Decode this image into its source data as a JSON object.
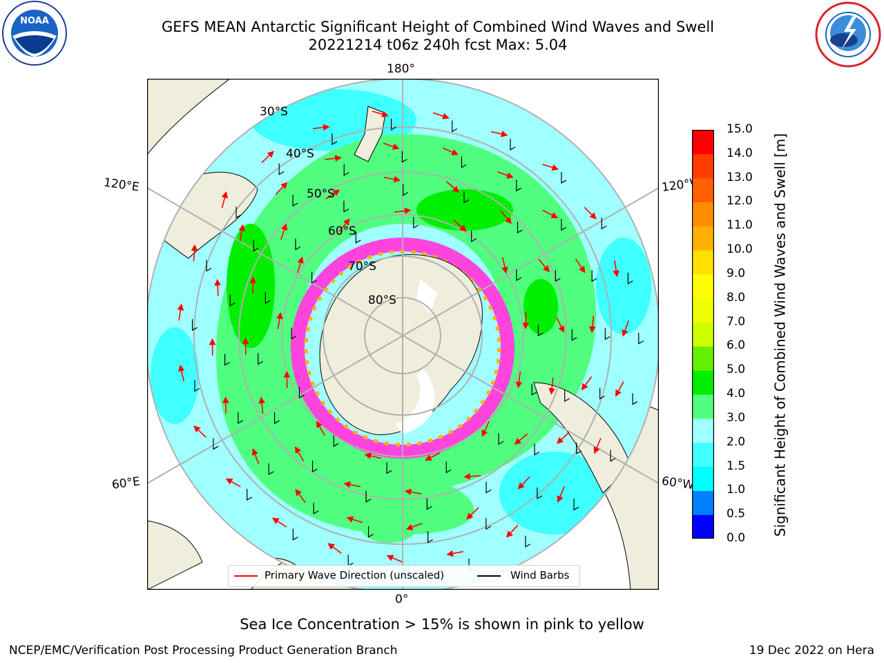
{
  "header": {
    "title_line1": "GEFS MEAN Antarctic Significant Height of Combined Wind Waves and Swell",
    "title_line2": "20221214 t06z 240h fcst   Max: 5.04"
  },
  "logos": {
    "left": "noaa-logo",
    "right": "nws-logo"
  },
  "map": {
    "projection_labels": {
      "top": "180°",
      "bottom": "0°",
      "left_upper": "120°E",
      "left_lower": "60°E",
      "right_upper": "120°W",
      "right_lower": "60°W"
    },
    "latitude_labels": [
      "30°S",
      "40°S",
      "50°S",
      "60°S",
      "70°S",
      "80°S"
    ]
  },
  "colorbar": {
    "label": "Significant Height of Combined Wind Waves and Swell [m]",
    "ticks": [
      "0.0",
      "0.5",
      "1.0",
      "1.5",
      "2.0",
      "3.0",
      "4.0",
      "5.0",
      "6.0",
      "7.0",
      "8.0",
      "9.0",
      "10.0",
      "11.0",
      "12.0",
      "13.0",
      "14.0",
      "15.0"
    ],
    "colors": [
      "#0000ff",
      "#0080ff",
      "#00ffff",
      "#40ffff",
      "#a0ffff",
      "#50ff80",
      "#00ee00",
      "#66ee00",
      "#ccff00",
      "#eeff00",
      "#ffff00",
      "#ffe000",
      "#ffb000",
      "#ff8c00",
      "#ff6000",
      "#ff3c00",
      "#ff0000"
    ]
  },
  "legend": {
    "wave_label": "Primary Wave Direction (unscaled)",
    "wind_label": "Wind Barbs",
    "wave_color": "#ff0000",
    "wind_color": "#000000"
  },
  "footer": {
    "note": "Sea Ice Concentration > 15% is shown in pink to yellow",
    "credit": "NCEP/EMC/Verification Post Processing Product Generation Branch",
    "date": "19 Dec 2022 on Hera"
  }
}
